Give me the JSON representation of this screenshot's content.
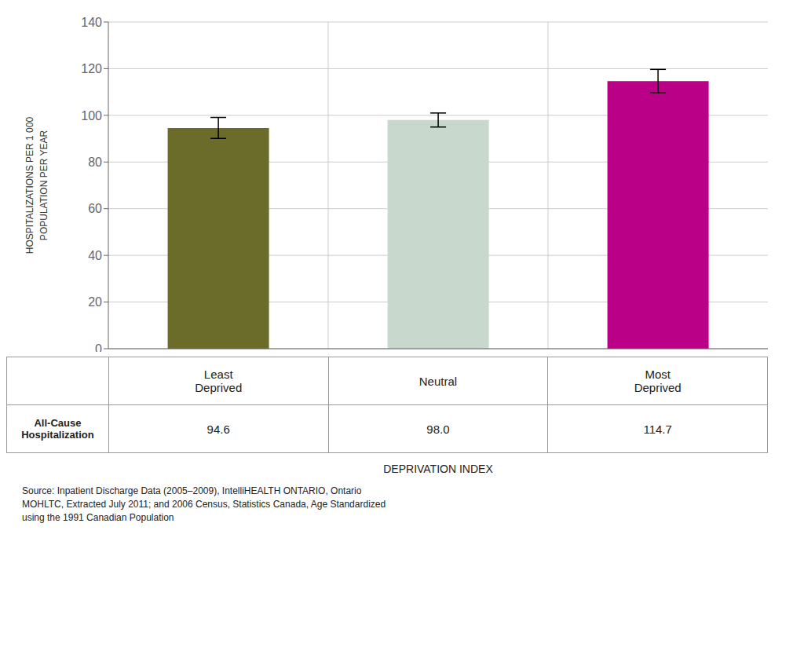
{
  "chart_data": {
    "type": "bar",
    "categories": [
      "Least\nDeprived",
      "Neutral",
      "Most\nDeprived"
    ],
    "values": [
      94.6,
      98.0,
      114.7
    ],
    "errors": [
      4.5,
      3.0,
      5.0
    ],
    "colors": [
      "#6b6b2a",
      "#c8d8cc",
      "#bb0088"
    ],
    "ylabel": [
      "HOSPITALIZATIONS PER 1 000",
      "POPULATION PER YEAR"
    ],
    "xlabel": "DEPRIVATION INDEX",
    "ylim": [
      0,
      140
    ],
    "yticks": [
      0,
      20,
      40,
      60,
      80,
      100,
      120,
      140
    ],
    "grid": true,
    "table": {
      "row_label": "All-Cause\nHospitalization",
      "value_labels": [
        "94.6",
        "98.0",
        "114.7"
      ]
    },
    "annotations": [
      "Source: Inpatient Discharge Data (2005–2009), IntelliHEALTH ONTARIO, Ontario\nMOHLTC, Extracted July 2011; and 2006 Census, Statistics Canada, Age Standardized\nusing the 1991 Canadian Population"
    ]
  }
}
